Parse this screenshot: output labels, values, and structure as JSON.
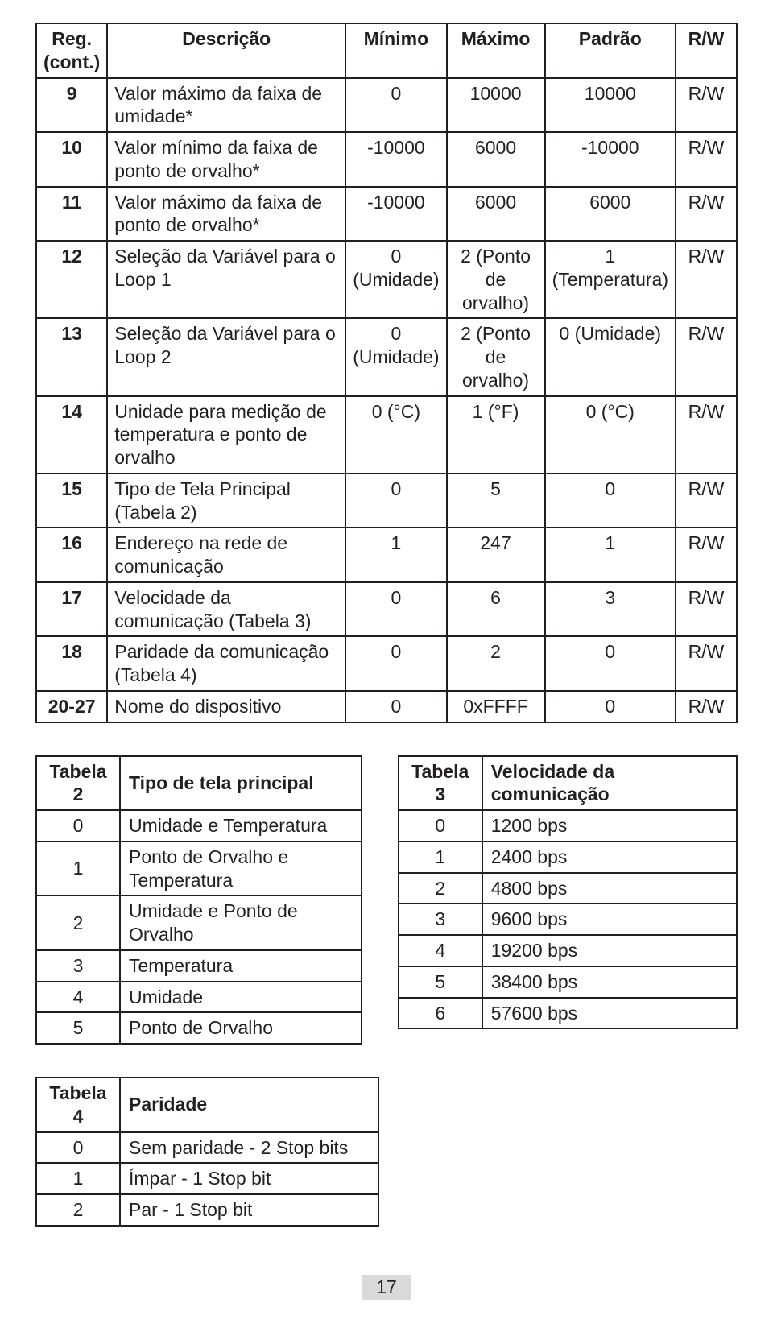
{
  "mainTable": {
    "headers": {
      "reg": "Reg. (cont.)",
      "desc": "Descrição",
      "min": "Mínimo",
      "max": "Máximo",
      "pad": "Padrão",
      "rw": "R/W"
    },
    "rows": [
      {
        "reg": "9",
        "desc": "Valor máximo da faixa de umidade*",
        "min": "0",
        "max": "10000",
        "pad": "10000",
        "rw": "R/W"
      },
      {
        "reg": "10",
        "desc": "Valor mínimo da faixa de ponto de orvalho*",
        "min": "-10000",
        "max": "6000",
        "pad": "-10000",
        "rw": "R/W"
      },
      {
        "reg": "11",
        "desc": "Valor máximo da faixa de ponto de orvalho*",
        "min": "-10000",
        "max": "6000",
        "pad": "6000",
        "rw": "R/W"
      },
      {
        "reg": "12",
        "desc": "Seleção da Variável para o Loop 1",
        "min": "0 (Umidade)",
        "max": "2 (Ponto de orvalho)",
        "pad": "1 (Temperatura)",
        "rw": "R/W"
      },
      {
        "reg": "13",
        "desc": "Seleção da Variável para o Loop 2",
        "min": "0 (Umidade)",
        "max": "2 (Ponto de orvalho)",
        "pad": "0 (Umidade)",
        "rw": "R/W"
      },
      {
        "reg": "14",
        "desc": "Unidade para medição de temperatura e ponto de orvalho",
        "min": "0 (°C)",
        "max": "1 (°F)",
        "pad": "0 (°C)",
        "rw": "R/W"
      },
      {
        "reg": "15",
        "desc": "Tipo de Tela Principal (Tabela 2)",
        "min": "0",
        "max": "5",
        "pad": "0",
        "rw": "R/W"
      },
      {
        "reg": "16",
        "desc": "Endereço na rede de comunicação",
        "min": "1",
        "max": "247",
        "pad": "1",
        "rw": "R/W"
      },
      {
        "reg": "17",
        "desc": "Velocidade da comunicação (Tabela 3)",
        "min": "0",
        "max": "6",
        "pad": "3",
        "rw": "R/W"
      },
      {
        "reg": "18",
        "desc": "Paridade da comunicação (Tabela 4)",
        "min": "0",
        "max": "2",
        "pad": "0",
        "rw": "R/W"
      },
      {
        "reg": "20-27",
        "desc": "Nome do dispositivo",
        "min": "0",
        "max": "0xFFFF",
        "pad": "0",
        "rw": "R/W"
      }
    ]
  },
  "table2": {
    "title": "Tabela 2",
    "header": "Tipo de tela principal",
    "rows": [
      {
        "k": "0",
        "v": "Umidade e Temperatura"
      },
      {
        "k": "1",
        "v": "Ponto de Orvalho e Temperatura"
      },
      {
        "k": "2",
        "v": "Umidade e Ponto de Orvalho"
      },
      {
        "k": "3",
        "v": "Temperatura"
      },
      {
        "k": "4",
        "v": "Umidade"
      },
      {
        "k": "5",
        "v": "Ponto de Orvalho"
      }
    ]
  },
  "table3": {
    "title": "Tabela 3",
    "header": "Velocidade da comunicação",
    "rows": [
      {
        "k": "0",
        "v": "1200 bps"
      },
      {
        "k": "1",
        "v": "2400 bps"
      },
      {
        "k": "2",
        "v": "4800 bps"
      },
      {
        "k": "3",
        "v": "9600 bps"
      },
      {
        "k": "4",
        "v": "19200 bps"
      },
      {
        "k": "5",
        "v": "38400 bps"
      },
      {
        "k": "6",
        "v": "57600 bps"
      }
    ]
  },
  "table4": {
    "title": "Tabela 4",
    "header": "Paridade",
    "rows": [
      {
        "k": "0",
        "v": "Sem paridade - 2 Stop bits"
      },
      {
        "k": "1",
        "v": "Ímpar - 1 Stop bit"
      },
      {
        "k": "2",
        "v": "Par - 1 Stop bit"
      }
    ]
  },
  "pageNumber": "17"
}
